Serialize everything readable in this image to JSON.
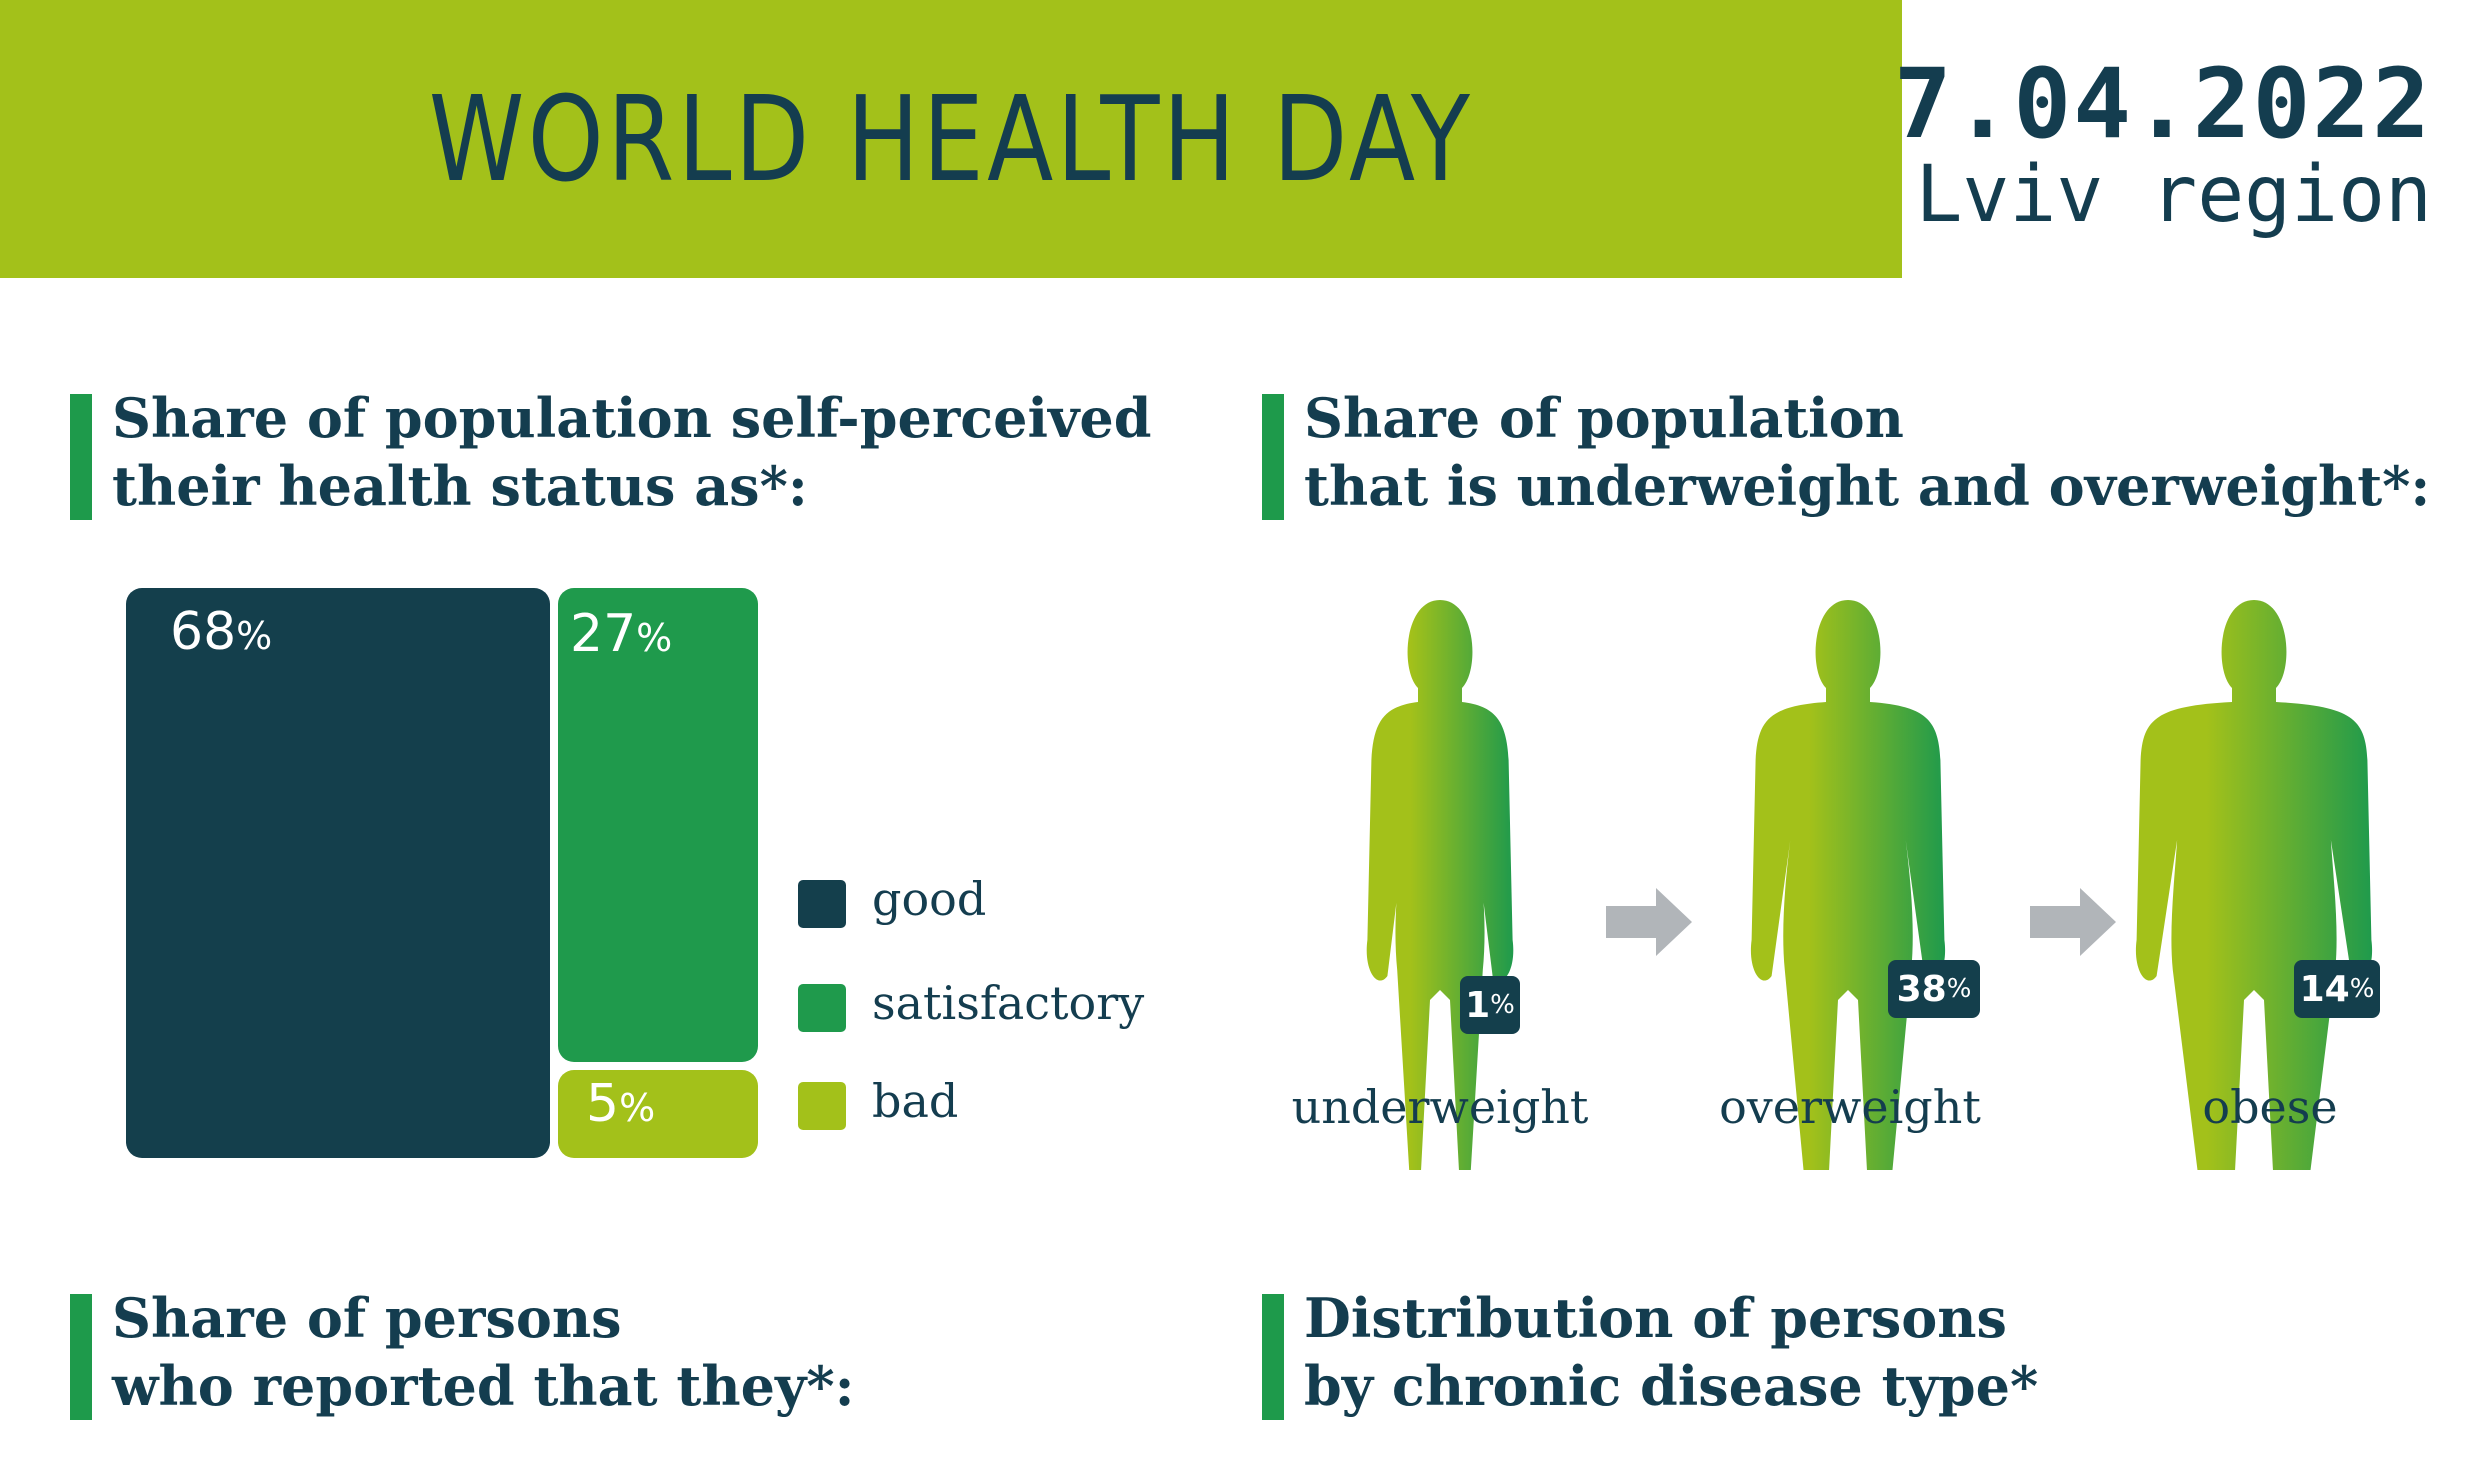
{
  "header": {
    "title": "WORLD HEALTH DAY",
    "date": "7.04.2022",
    "region": "Lviv region"
  },
  "sections": {
    "health_status": {
      "title_line1": "Share of population self-perceived",
      "title_line2": "their health status as*:"
    },
    "weight": {
      "title_line1": "Share of population",
      "title_line2": "that is underweight and overweight*:"
    },
    "reported": {
      "title_line1": "Share of persons",
      "title_line2": "who reported that they*:"
    },
    "chronic": {
      "title_line1": "Distribution of persons",
      "title_line2": "by chronic disease type*"
    }
  },
  "chart_data": [
    {
      "type": "treemap",
      "categories": [
        "good",
        "satisfactory",
        "bad"
      ],
      "values": [
        68,
        27,
        5
      ],
      "value_labels": [
        "68",
        "27",
        "5"
      ],
      "unit": "%",
      "colors": [
        "#143f4c",
        "#1f9a4c",
        "#a3c11a"
      ],
      "legend_position": "right"
    },
    {
      "type": "pictogram",
      "categories": [
        "underweight",
        "overweight",
        "obese"
      ],
      "values": [
        1,
        38,
        14
      ],
      "value_labels": [
        "1",
        "38",
        "14"
      ],
      "unit": "%",
      "colors": [
        "#a3c11a",
        "#1f9a4c"
      ],
      "badge_color": "#143f4c",
      "arrow_color": "#b1b5b9"
    }
  ]
}
